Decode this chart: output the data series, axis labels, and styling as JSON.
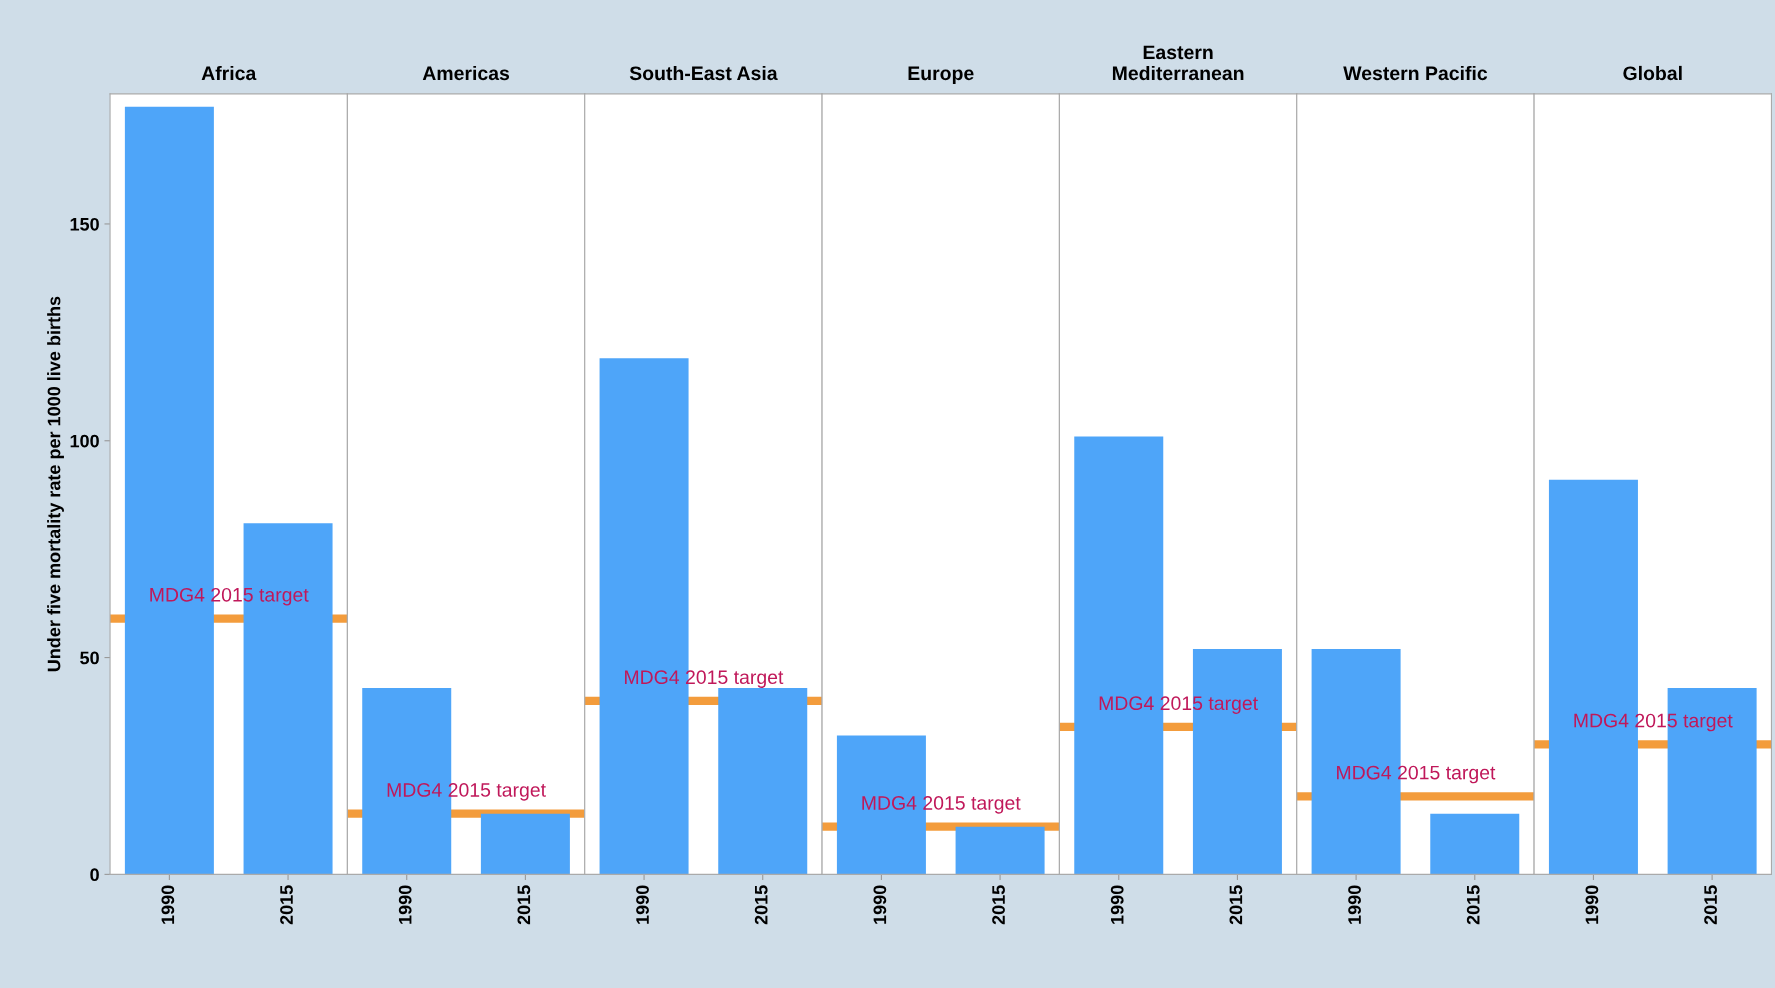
{
  "chart_data": [
    {
      "type": "bar",
      "title": "Africa",
      "ylabel": "Under five mortality rate per 1000 live births",
      "categories": [
        "1990",
        "2015"
      ],
      "values": [
        177,
        81
      ],
      "color": "#4ea5f9",
      "ylim": [
        0,
        180
      ],
      "yticks": [
        0,
        50,
        100,
        150
      ],
      "grid": false,
      "ref_lines": [
        {
          "axis": "y",
          "value": 59,
          "label": "MDG4 2015 target",
          "color": "#f39c3c"
        }
      ]
    },
    {
      "type": "bar",
      "title": "Americas",
      "categories": [
        "1990",
        "2015"
      ],
      "values": [
        43,
        14
      ],
      "color": "#4ea5f9",
      "ylim": [
        0,
        180
      ],
      "yticks": [
        0,
        50,
        100,
        150
      ],
      "grid": false,
      "tick_labels": "x",
      "ref_lines": [
        {
          "axis": "y",
          "value": 14,
          "label": "MDG4 2015 target",
          "color": "#f39c3c"
        }
      ]
    },
    {
      "type": "bar",
      "title": "South-East Asia",
      "categories": [
        "1990",
        "2015"
      ],
      "values": [
        119,
        43
      ],
      "color": "#4ea5f9",
      "ylim": [
        0,
        180
      ],
      "yticks": [
        0,
        50,
        100,
        150
      ],
      "grid": false,
      "tick_labels": "x",
      "ref_lines": [
        {
          "axis": "y",
          "value": 40,
          "label": "MDG4 2015 target",
          "color": "#f39c3c"
        }
      ]
    },
    {
      "type": "bar",
      "title": "Europe",
      "categories": [
        "1990",
        "2015"
      ],
      "values": [
        32,
        11
      ],
      "color": "#4ea5f9",
      "ylim": [
        0,
        180
      ],
      "yticks": [
        0,
        50,
        100,
        150
      ],
      "grid": false,
      "tick_labels": "x",
      "ref_lines": [
        {
          "axis": "y",
          "value": 11,
          "label": "MDG4 2015 target",
          "color": "#f39c3c"
        }
      ]
    },
    {
      "type": "bar",
      "title": "Eastern\nMediterranean",
      "categories": [
        "1990",
        "2015"
      ],
      "values": [
        101,
        52
      ],
      "color": "#4ea5f9",
      "ylim": [
        0,
        180
      ],
      "yticks": [
        0,
        50,
        100,
        150
      ],
      "grid": false,
      "tick_labels": "x",
      "ref_lines": [
        {
          "axis": "y",
          "value": 34,
          "label": "MDG4 2015 target",
          "color": "#f39c3c"
        }
      ]
    },
    {
      "type": "bar",
      "title": "Western Pacific",
      "categories": [
        "1990",
        "2015"
      ],
      "values": [
        52,
        14
      ],
      "color": "#4ea5f9",
      "ylim": [
        0,
        180
      ],
      "yticks": [
        0,
        50,
        100,
        150
      ],
      "grid": false,
      "tick_labels": "x",
      "ref_lines": [
        {
          "axis": "y",
          "value": 18,
          "label": "MDG4 2015 target",
          "color": "#f39c3c"
        }
      ]
    },
    {
      "type": "bar",
      "title": "Global",
      "categories": [
        "1990",
        "2015"
      ],
      "values": [
        91,
        43
      ],
      "color": "#4ea5f9",
      "ylim": [
        0,
        180
      ],
      "yticks": [
        0,
        50,
        100,
        150
      ],
      "grid": false,
      "tick_labels": "x",
      "ref_lines": [
        {
          "axis": "y",
          "value": 30,
          "label": "MDG4 2015 target",
          "color": "#f39c3c"
        }
      ]
    }
  ]
}
